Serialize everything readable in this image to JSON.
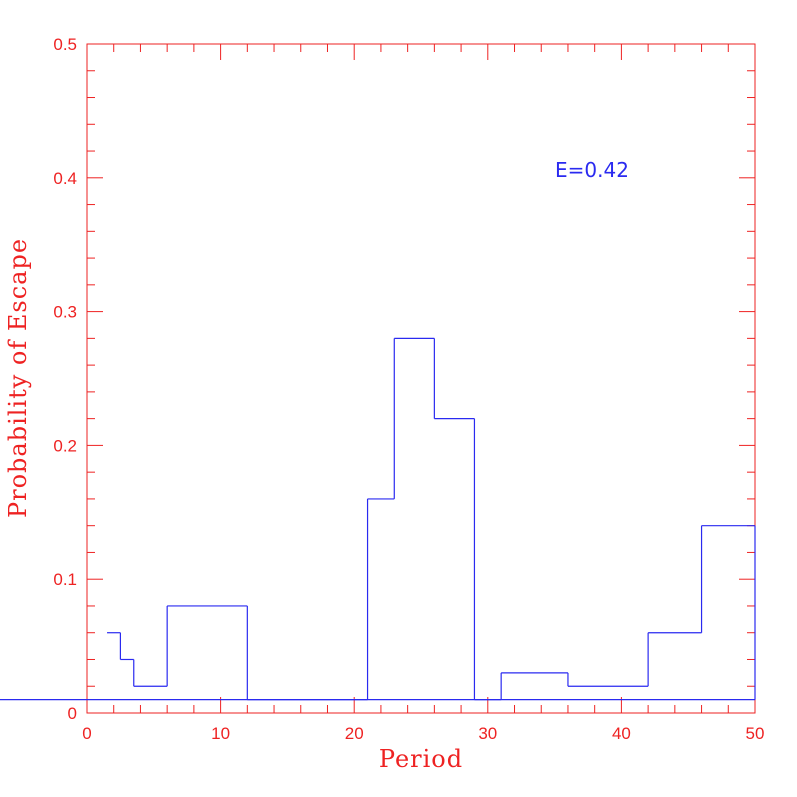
{
  "chart_data": {
    "type": "histogram",
    "x_label": "Period",
    "y_label": "Probability of Escape",
    "annotation": "E=0.42",
    "bins": [
      1.5,
      2.5,
      3.5,
      6,
      12,
      18,
      21,
      23,
      26,
      29,
      31,
      36,
      42,
      46,
      50
    ],
    "values": [
      0.06,
      0.04,
      0.02,
      0.08,
      0.01,
      0.01,
      0.16,
      0.28,
      0.22,
      0.01,
      0.03,
      0.02,
      0.06,
      0.14,
      0.01
    ],
    "color": "#2a2af0",
    "axis_color": "#ee2222",
    "xlim": [
      0,
      50
    ],
    "xticks": [
      0,
      10,
      20,
      30,
      40,
      50
    ],
    "ylim": [
      0,
      0.5
    ],
    "yticks": [
      0,
      0.1,
      0.2,
      0.3,
      0.4,
      0.5
    ]
  }
}
